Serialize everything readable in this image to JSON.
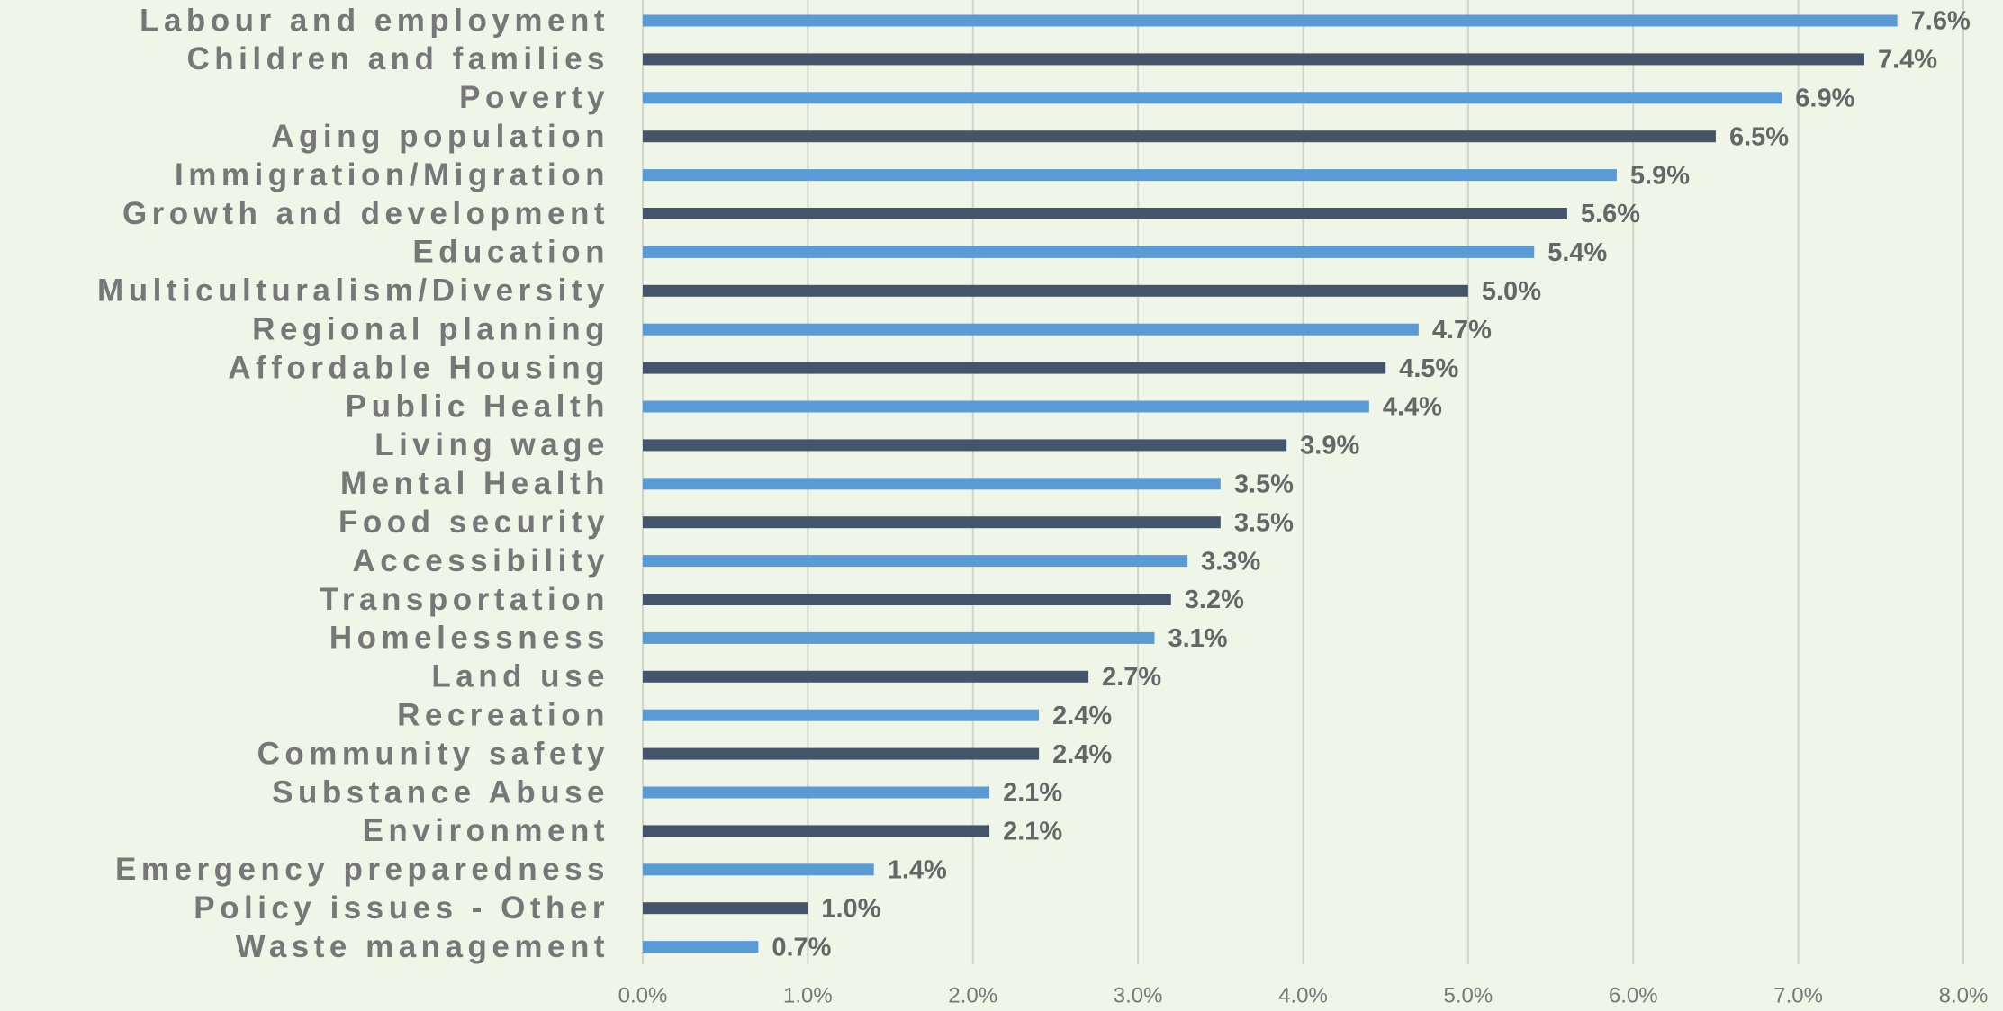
{
  "chart_data": {
    "type": "bar",
    "orientation": "horizontal",
    "categories": [
      "Labour and employment",
      "Children and families",
      "Poverty",
      "Aging population",
      "Immigration/Migration",
      "Growth and development",
      "Education",
      "Multiculturalism/Diversity",
      "Regional planning",
      "Affordable Housing",
      "Public Health",
      "Living wage",
      "Mental Health",
      "Food security",
      "Accessibility",
      "Transportation",
      "Homelessness",
      "Land use",
      "Recreation",
      "Community safety",
      "Substance Abuse",
      "Environment",
      "Emergency preparedness",
      "Policy issues - Other",
      "Waste management"
    ],
    "values": [
      7.6,
      7.4,
      6.9,
      6.5,
      5.9,
      5.6,
      5.4,
      5.0,
      4.7,
      4.5,
      4.4,
      3.9,
      3.5,
      3.5,
      3.3,
      3.2,
      3.1,
      2.7,
      2.4,
      2.4,
      2.1,
      2.1,
      1.4,
      1.0,
      0.7
    ],
    "value_labels": [
      "7.6%",
      "7.4%",
      "6.9%",
      "6.5%",
      "5.9%",
      "5.6%",
      "5.4%",
      "5.0%",
      "4.7%",
      "4.5%",
      "4.4%",
      "3.9%",
      "3.5%",
      "3.5%",
      "3.3%",
      "3.2%",
      "3.1%",
      "2.7%",
      "2.4%",
      "2.4%",
      "2.1%",
      "2.1%",
      "1.4%",
      "1.0%",
      "0.7%"
    ],
    "colors": [
      "#5b9bd5",
      "#44546a",
      "#5b9bd5",
      "#44546a",
      "#5b9bd5",
      "#44546a",
      "#5b9bd5",
      "#44546a",
      "#5b9bd5",
      "#44546a",
      "#5b9bd5",
      "#44546a",
      "#5b9bd5",
      "#44546a",
      "#5b9bd5",
      "#44546a",
      "#5b9bd5",
      "#44546a",
      "#5b9bd5",
      "#44546a",
      "#5b9bd5",
      "#44546a",
      "#5b9bd5",
      "#44546a",
      "#5b9bd5"
    ],
    "xlim": [
      0,
      8
    ],
    "xticks": [
      {
        "value": 0,
        "label": "0.0%"
      },
      {
        "value": 1,
        "label": "1.0%"
      },
      {
        "value": 2,
        "label": "2.0%"
      },
      {
        "value": 3,
        "label": "3.0%"
      },
      {
        "value": 4,
        "label": "4.0%"
      },
      {
        "value": 5,
        "label": "5.0%"
      },
      {
        "value": 6,
        "label": "6.0%"
      },
      {
        "value": 7,
        "label": "7.0%"
      },
      {
        "value": 8,
        "label": "8.0%"
      }
    ],
    "grid": true
  }
}
